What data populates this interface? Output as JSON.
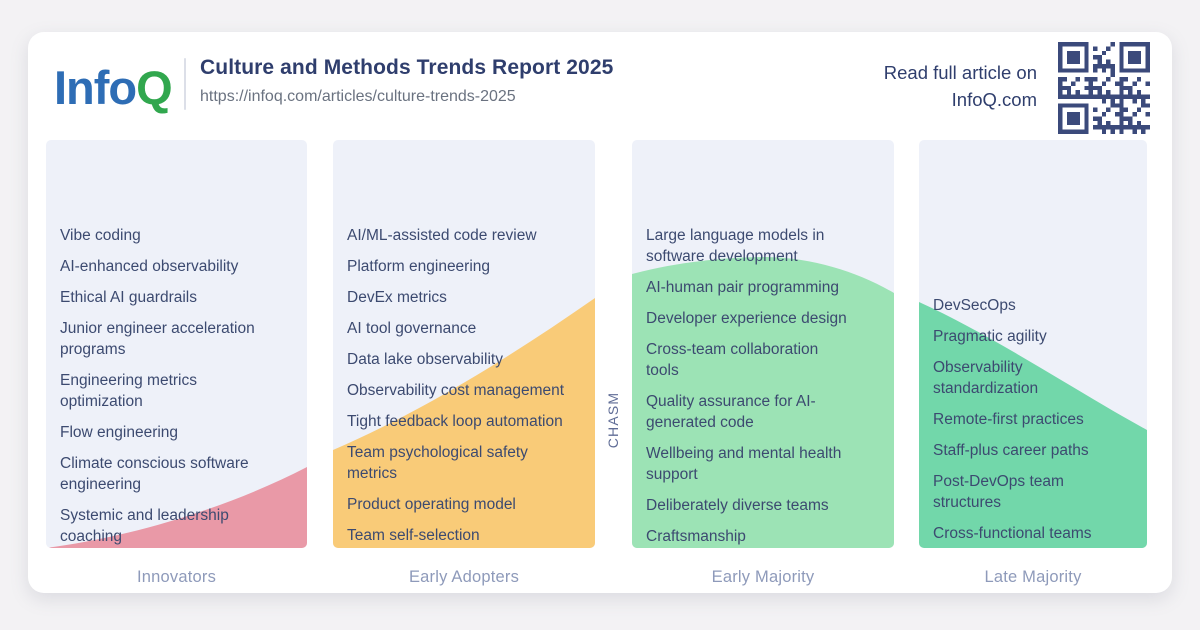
{
  "header": {
    "logo_part1": "Info",
    "logo_part2": "Q",
    "title": "Culture and Methods Trends Report 2025",
    "url": "https://infoq.com/articles/culture-trends-2025",
    "cta": "Read full article on\nInfoQ.com",
    "qr_color": "#3b4a7b"
  },
  "palette": {
    "page_background": "#f3f2f4",
    "card_background": "#ffffff",
    "column_background": "#eef1f9",
    "logo_blue": "#2e6db5",
    "logo_green": "#31a74e",
    "heading_navy": "#2f3e6d",
    "item_text": "#3c4a70",
    "label_gray_blue": "#8e9aba"
  },
  "chasm_label": "CHASM",
  "columns": [
    {
      "label": "Innovators",
      "color": "#e999a7",
      "items": [
        "Vibe coding",
        "AI-enhanced observability",
        "Ethical AI guardrails",
        "Junior engineer acceleration\nprograms",
        "Engineering metrics\noptimization",
        "Flow engineering",
        "Climate conscious software\nengineering",
        "Systemic and leadership\ncoaching"
      ]
    },
    {
      "label": "Early Adopters",
      "color": "#f9cb78",
      "items": [
        "AI/ML-assisted code review",
        "Platform engineering",
        "DevEx metrics",
        "AI tool governance",
        "Data lake observability",
        "Observability cost management",
        "Tight feedback loop automation",
        "Team psychological safety\nmetrics",
        "Product operating model",
        "Team self-selection"
      ]
    },
    {
      "label": "Early Majority",
      "color": "#9ce3b5",
      "items": [
        "Large language models in\nsoftware development",
        "AI-human pair programming",
        "Developer experience design",
        "Cross-team collaboration\ntools",
        "Quality assurance for AI-\ngenerated code",
        "Wellbeing and mental health\nsupport",
        "Deliberately diverse teams",
        "Craftsmanship"
      ]
    },
    {
      "label": "Late Majority",
      "color": "#72d7aa",
      "items": [
        "DevSecOps",
        "Pragmatic agility",
        "Observability\nstandardization",
        "Remote-first practices",
        "Staff-plus career paths",
        "Post-DevOps team\nstructures",
        "Cross-functional teams"
      ]
    }
  ]
}
